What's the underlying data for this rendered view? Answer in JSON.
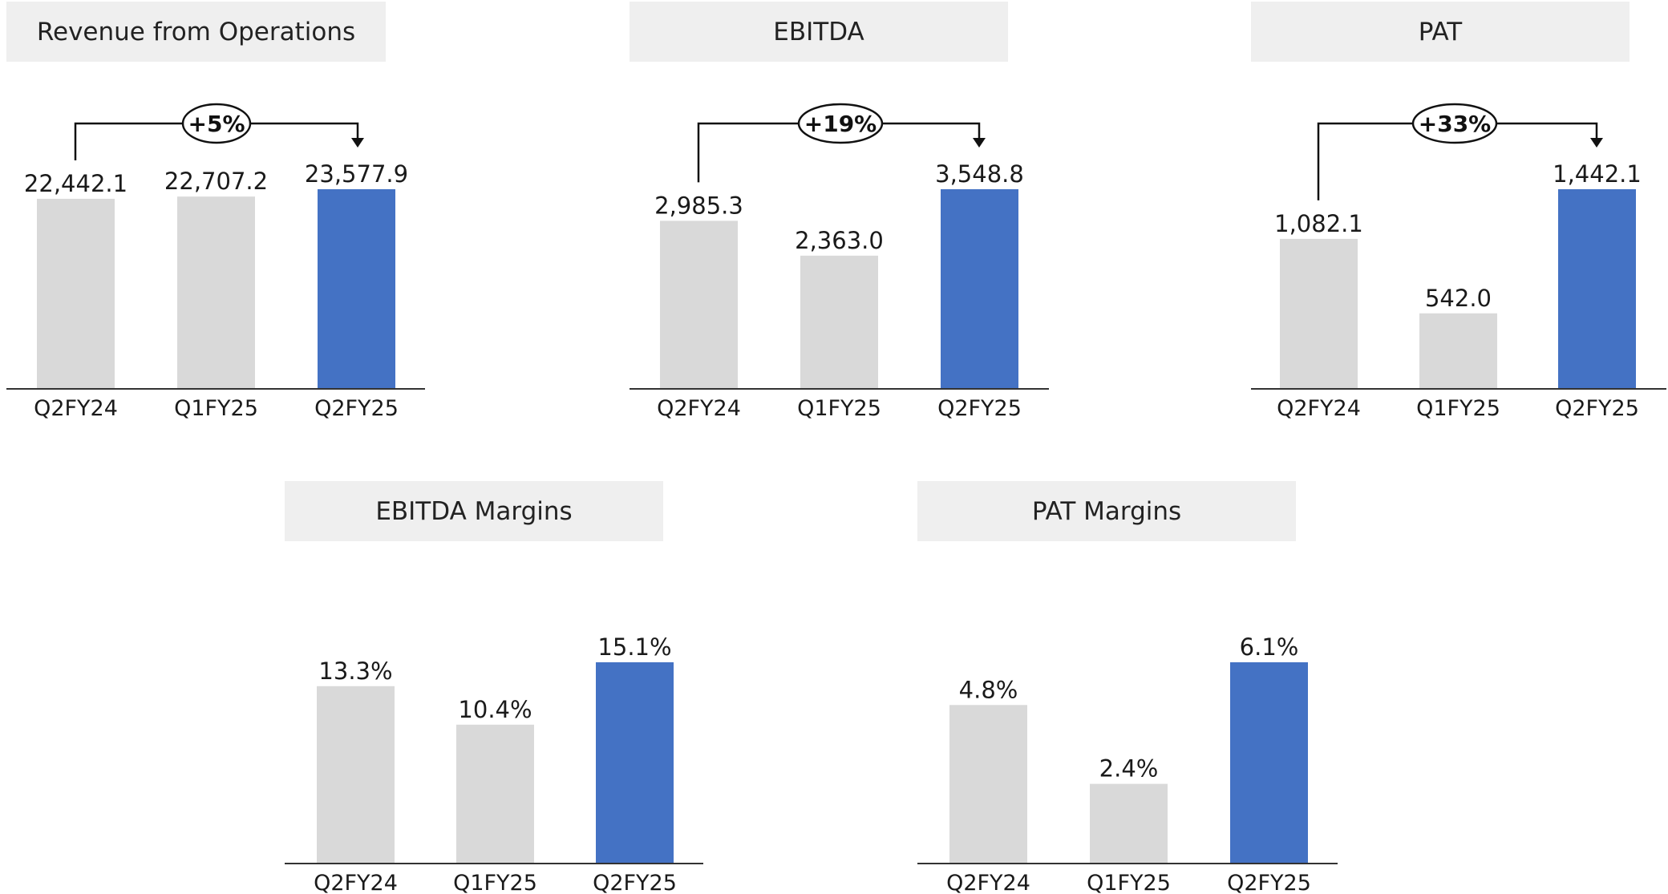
{
  "colors": {
    "base": "#d9d9d9",
    "highlight": "#4472c4",
    "axis": "#333333"
  },
  "chart_data": [
    {
      "type": "bar",
      "title": "Revenue from Operations",
      "categories": [
        "Q2FY24",
        "Q1FY25",
        "Q2FY25"
      ],
      "values": [
        22442.1,
        22707.2,
        23577.9
      ],
      "value_labels": [
        "22,442.1",
        "22,707.2",
        "23,577.9"
      ],
      "ylim": [
        0,
        23577.9
      ],
      "highlight_index": 2,
      "growth_label": "+5%"
    },
    {
      "type": "bar",
      "title": "EBITDA",
      "categories": [
        "Q2FY24",
        "Q1FY25",
        "Q2FY25"
      ],
      "values": [
        2985.3,
        2363.0,
        3548.8
      ],
      "value_labels": [
        "2,985.3",
        "2,363.0",
        "3,548.8"
      ],
      "ylim": [
        0,
        3548.8
      ],
      "highlight_index": 2,
      "growth_label": "+19%"
    },
    {
      "type": "bar",
      "title": "PAT",
      "categories": [
        "Q2FY24",
        "Q1FY25",
        "Q2FY25"
      ],
      "values": [
        1082.1,
        542.0,
        1442.1
      ],
      "value_labels": [
        "1,082.1",
        "542.0",
        "1,442.1"
      ],
      "ylim": [
        0,
        1442.1
      ],
      "highlight_index": 2,
      "growth_label": "+33%"
    },
    {
      "type": "bar",
      "title": "EBITDA Margins",
      "categories": [
        "Q2FY24",
        "Q1FY25",
        "Q2FY25"
      ],
      "values": [
        13.3,
        10.4,
        15.1
      ],
      "value_labels": [
        "13.3%",
        "10.4%",
        "15.1%"
      ],
      "ylim": [
        0,
        15.1
      ],
      "highlight_index": 2
    },
    {
      "type": "bar",
      "title": "PAT Margins",
      "categories": [
        "Q2FY24",
        "Q1FY25",
        "Q2FY25"
      ],
      "values": [
        4.8,
        2.4,
        6.1
      ],
      "value_labels": [
        "4.8%",
        "2.4%",
        "6.1%"
      ],
      "ylim": [
        0,
        6.1
      ],
      "highlight_index": 2
    }
  ]
}
